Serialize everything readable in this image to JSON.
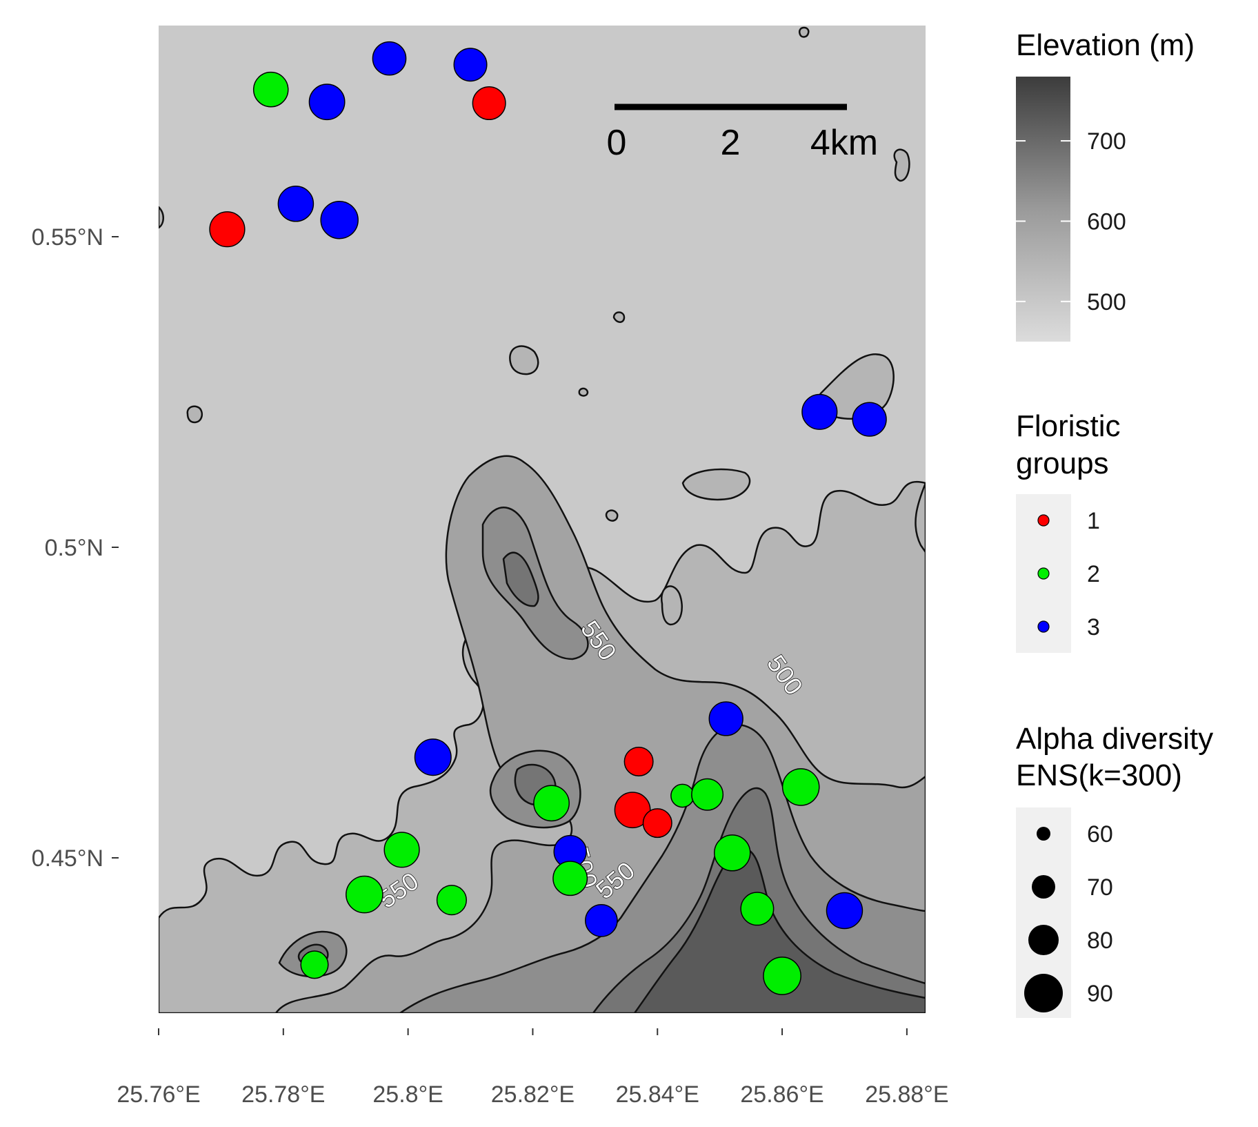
{
  "chart_data": {
    "type": "scatter",
    "x_ticks": [
      "25.76°E",
      "25.78°E",
      "25.8°E",
      "25.82°E",
      "25.84°E",
      "25.86°E",
      "25.88°E"
    ],
    "y_ticks": [
      "0.55°N",
      "0.5°N",
      "0.45°N"
    ],
    "xlim": [
      25.76,
      25.883
    ],
    "ylim": [
      0.425,
      0.584
    ],
    "elevation_legend": {
      "title": "Elevation (m)",
      "range": [
        450,
        780
      ],
      "ticks": [
        {
          "label": "700",
          "value": 700
        },
        {
          "label": "600",
          "value": 600
        },
        {
          "label": "500",
          "value": 500
        }
      ]
    },
    "group_legend": {
      "title_lines": [
        "Floristic",
        "groups"
      ],
      "groups": [
        {
          "label": "1",
          "color": "#ff0000"
        },
        {
          "label": "2",
          "color": "#00ee00"
        },
        {
          "label": "3",
          "color": "#0000ff"
        }
      ]
    },
    "size_legend": {
      "title_lines": [
        "Alpha diversity",
        "ENS(k=300)"
      ],
      "values": [
        {
          "label": "60",
          "value": 60
        },
        {
          "label": "70",
          "value": 70
        },
        {
          "label": "80",
          "value": 80
        },
        {
          "label": "90",
          "value": 90
        }
      ]
    },
    "scale_bar": {
      "labels": [
        "0",
        "2",
        "4km"
      ]
    },
    "contour_labels": [
      "550",
      "500",
      "550",
      "550",
      "500"
    ],
    "points": [
      {
        "lon": 25.778,
        "lat": 0.5737,
        "group": 2,
        "ens": 80
      },
      {
        "lon": 25.787,
        "lat": 0.5717,
        "group": 3,
        "ens": 84
      },
      {
        "lon": 25.797,
        "lat": 0.5787,
        "group": 3,
        "ens": 74
      },
      {
        "lon": 25.81,
        "lat": 0.5777,
        "group": 3,
        "ens": 72
      },
      {
        "lon": 25.813,
        "lat": 0.5715,
        "group": 1,
        "ens": 72
      },
      {
        "lon": 25.782,
        "lat": 0.5553,
        "group": 3,
        "ens": 83
      },
      {
        "lon": 25.789,
        "lat": 0.5527,
        "group": 3,
        "ens": 93
      },
      {
        "lon": 25.771,
        "lat": 0.5512,
        "group": 1,
        "ens": 82
      },
      {
        "lon": 25.866,
        "lat": 0.5218,
        "group": 3,
        "ens": 82
      },
      {
        "lon": 25.874,
        "lat": 0.5206,
        "group": 3,
        "ens": 76
      },
      {
        "lon": 25.851,
        "lat": 0.4724,
        "group": 3,
        "ens": 76
      },
      {
        "lon": 25.804,
        "lat": 0.4662,
        "group": 3,
        "ens": 88
      },
      {
        "lon": 25.837,
        "lat": 0.4655,
        "group": 1,
        "ens": 55
      },
      {
        "lon": 25.863,
        "lat": 0.4614,
        "group": 2,
        "ens": 90
      },
      {
        "lon": 25.823,
        "lat": 0.4588,
        "group": 2,
        "ens": 84
      },
      {
        "lon": 25.836,
        "lat": 0.4577,
        "group": 1,
        "ens": 84
      },
      {
        "lon": 25.844,
        "lat": 0.46,
        "group": 2,
        "ens": 35
      },
      {
        "lon": 25.848,
        "lat": 0.4602,
        "group": 2,
        "ens": 66
      },
      {
        "lon": 25.84,
        "lat": 0.4556,
        "group": 1,
        "ens": 55
      },
      {
        "lon": 25.799,
        "lat": 0.4513,
        "group": 2,
        "ens": 82
      },
      {
        "lon": 25.826,
        "lat": 0.451,
        "group": 3,
        "ens": 70
      },
      {
        "lon": 25.852,
        "lat": 0.4508,
        "group": 2,
        "ens": 86
      },
      {
        "lon": 25.826,
        "lat": 0.4467,
        "group": 2,
        "ens": 78
      },
      {
        "lon": 25.793,
        "lat": 0.4441,
        "group": 2,
        "ens": 90
      },
      {
        "lon": 25.807,
        "lat": 0.4432,
        "group": 2,
        "ens": 58
      },
      {
        "lon": 25.856,
        "lat": 0.4418,
        "group": 2,
        "ens": 72
      },
      {
        "lon": 25.87,
        "lat": 0.4415,
        "group": 3,
        "ens": 86
      },
      {
        "lon": 25.831,
        "lat": 0.4399,
        "group": 3,
        "ens": 68
      },
      {
        "lon": 25.785,
        "lat": 0.4328,
        "group": 2,
        "ens": 50
      },
      {
        "lon": 25.86,
        "lat": 0.431,
        "group": 2,
        "ens": 94
      }
    ]
  }
}
